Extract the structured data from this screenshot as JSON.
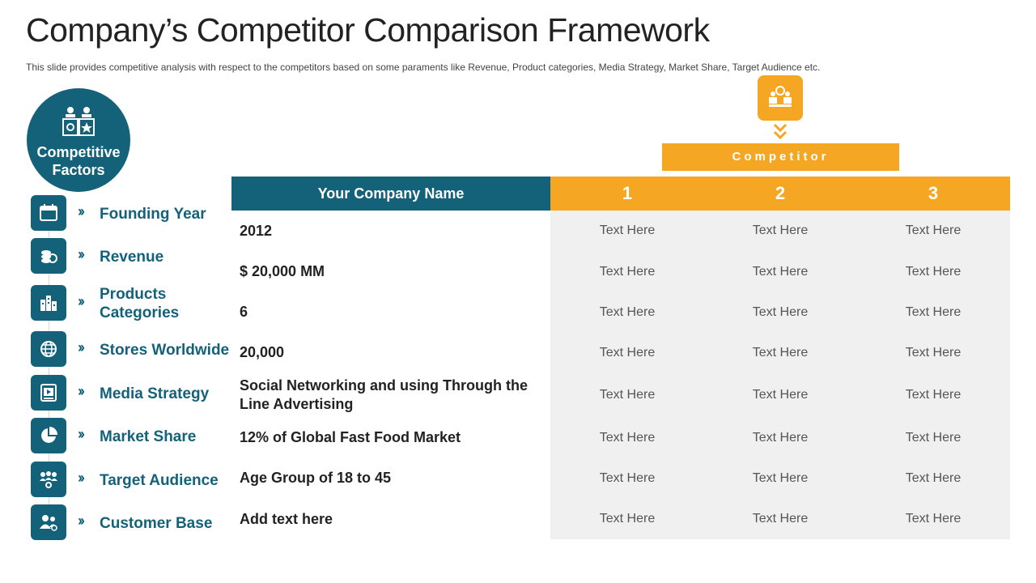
{
  "title": "Company’s Competitor Comparison Framework",
  "subtitle": "This slide provides  competitive analysis with respect to the competitors based on some paraments like Revenue,  Product categories, Media Strategy, Market Share, Target  Audience  etc.",
  "factors_header": "Competitive Factors",
  "competitor_label": "Competitor",
  "table": {
    "company_header": "Your Company Name",
    "competitor_numbers": [
      "1",
      "2",
      "3"
    ],
    "rows": [
      {
        "factor": "Founding Year",
        "factor_icon": "calendar-icon",
        "company": "2012",
        "c1": "Text Here",
        "c2": "Text Here",
        "c3": "Text Here"
      },
      {
        "factor": "Revenue",
        "factor_icon": "coins-icon",
        "company": "$ 20,000 MM",
        "c1": "Text Here",
        "c2": "Text Here",
        "c3": "Text Here"
      },
      {
        "factor": "Products Categories",
        "factor_icon": "city-icon",
        "company": "6",
        "c1": "Text Here",
        "c2": "Text Here",
        "c3": "Text Here"
      },
      {
        "factor": "Stores Worldwide",
        "factor_icon": "globe-icon",
        "company": "20,000",
        "c1": "Text Here",
        "c2": "Text Here",
        "c3": "Text Here"
      },
      {
        "factor": "Media Strategy",
        "factor_icon": "media-player-icon",
        "company": "Social Networking and using Through the Line Advertising",
        "c1": "Text Here",
        "c2": "Text Here",
        "c3": "Text Here"
      },
      {
        "factor": "Market Share",
        "factor_icon": "pie-chart-icon",
        "company": "12% of Global Fast Food Market",
        "c1": "Text Here",
        "c2": "Text Here",
        "c3": "Text Here"
      },
      {
        "factor": "Target Audience",
        "factor_icon": "audience-icon",
        "company": "Age Group of 18 to 45",
        "c1": "Text Here",
        "c2": "Text Here",
        "c3": "Text Here"
      },
      {
        "factor": "Customer Base",
        "factor_icon": "customers-icon",
        "company": "Add text here",
        "c1": "Text Here",
        "c2": "Text Here",
        "c3": "Text Here"
      }
    ]
  },
  "colors": {
    "teal": "#14627a",
    "orange": "#f5a623",
    "grey_panel": "#f0f0f0"
  }
}
